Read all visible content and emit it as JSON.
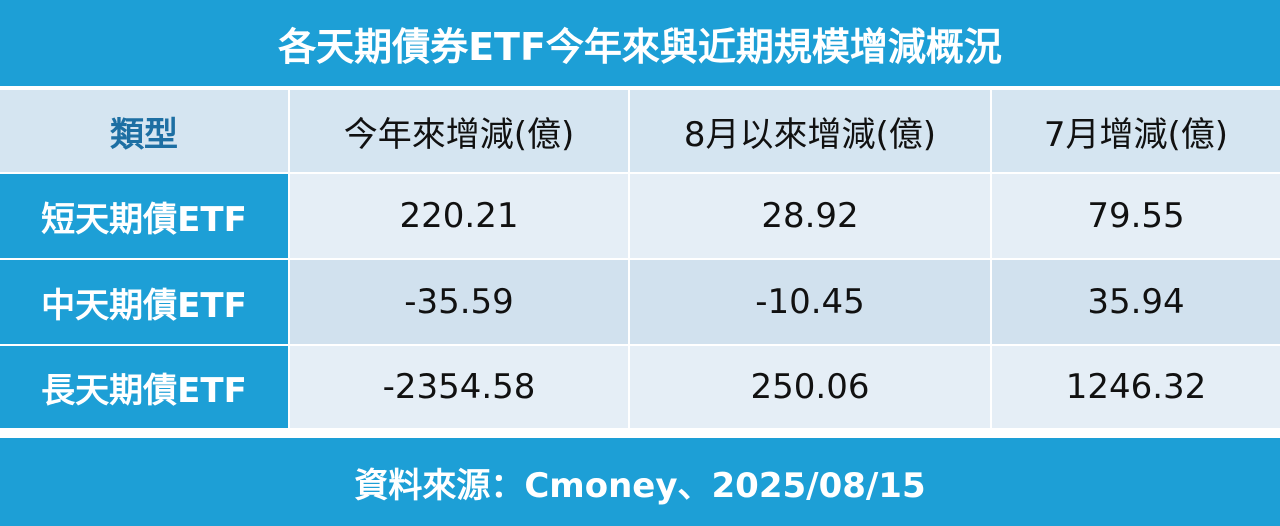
{
  "title": "各天期債券ETF今年來與近期規模增減概況",
  "table": {
    "header": [
      "類型",
      "今年來增減(億)",
      "8月以來增減(億)",
      "7月增減(億)"
    ],
    "rows": [
      [
        "短天期債ETF",
        "220.21",
        "28.92",
        "79.55"
      ],
      [
        "中天期債ETF",
        "-35.59",
        "-10.45",
        "35.94"
      ],
      [
        "長天期債ETF",
        "-2354.58",
        "250.06",
        "1246.32"
      ]
    ]
  },
  "footer": "資料來源：Cmoney、2025/08/15"
}
